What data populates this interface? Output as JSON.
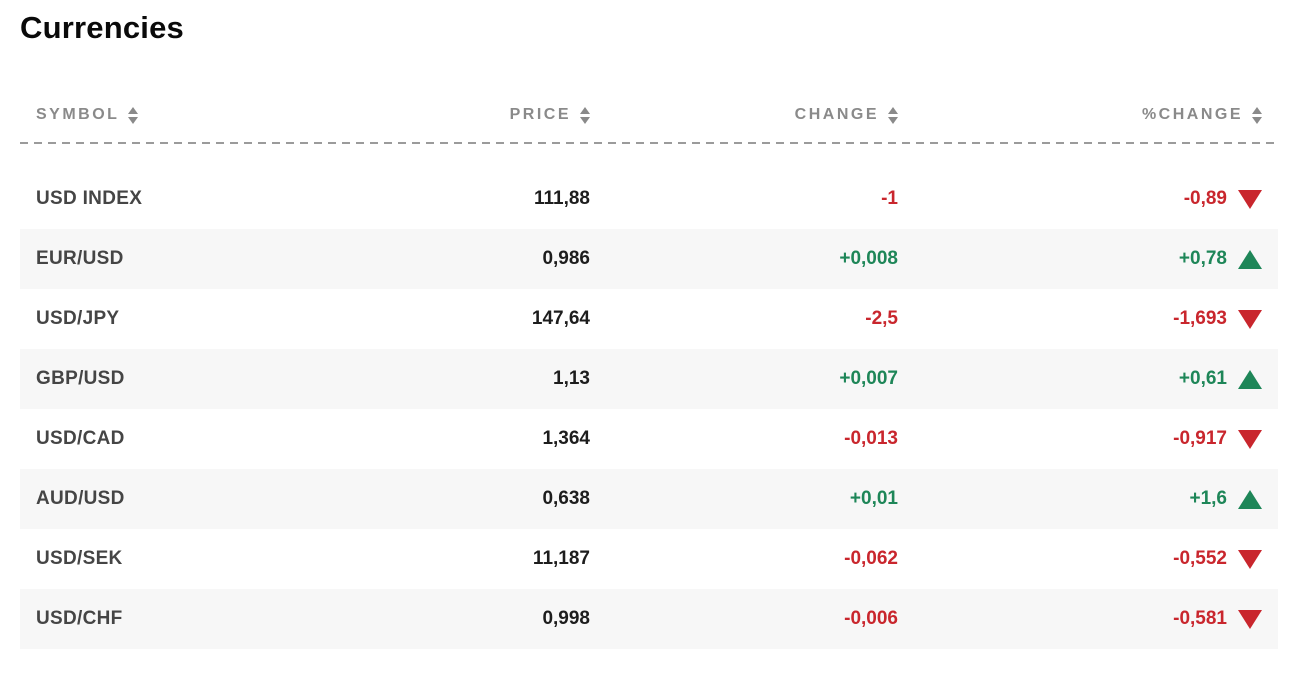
{
  "page": {
    "title": "Currencies"
  },
  "table": {
    "columns": [
      {
        "key": "symbol",
        "label": "SYMBOL",
        "sortable": true
      },
      {
        "key": "price",
        "label": "PRICE",
        "sortable": true
      },
      {
        "key": "change",
        "label": "CHANGE",
        "sortable": true
      },
      {
        "key": "pct_change",
        "label": "%CHANGE",
        "sortable": true
      }
    ],
    "rows": [
      {
        "symbol": "USD INDEX",
        "price": "111,88",
        "change": "-1",
        "pct_change": "-0,89",
        "direction": "down"
      },
      {
        "symbol": "EUR/USD",
        "price": "0,986",
        "change": "+0,008",
        "pct_change": "+0,78",
        "direction": "up"
      },
      {
        "symbol": "USD/JPY",
        "price": "147,64",
        "change": "-2,5",
        "pct_change": "-1,693",
        "direction": "down"
      },
      {
        "symbol": "GBP/USD",
        "price": "1,13",
        "change": "+0,007",
        "pct_change": "+0,61",
        "direction": "up"
      },
      {
        "symbol": "USD/CAD",
        "price": "1,364",
        "change": "-0,013",
        "pct_change": "-0,917",
        "direction": "down"
      },
      {
        "symbol": "AUD/USD",
        "price": "0,638",
        "change": "+0,01",
        "pct_change": "+1,6",
        "direction": "up"
      },
      {
        "symbol": "USD/SEK",
        "price": "11,187",
        "change": "-0,062",
        "pct_change": "-0,552",
        "direction": "down"
      },
      {
        "symbol": "USD/CHF",
        "price": "0,998",
        "change": "-0,006",
        "pct_change": "-0,581",
        "direction": "down"
      }
    ],
    "icons": {
      "sort": "sort-arrows-icon",
      "up": "triangle-up-icon",
      "down": "triangle-down-icon"
    },
    "colors": {
      "positive": "#1e8658",
      "negative": "#c9262d",
      "row_alt_bg": "#f7f7f7",
      "header_text": "#8a8a8a",
      "symbol_text": "#454545",
      "price_text": "#1d1d1d",
      "divider": "#9b9b9b"
    }
  }
}
